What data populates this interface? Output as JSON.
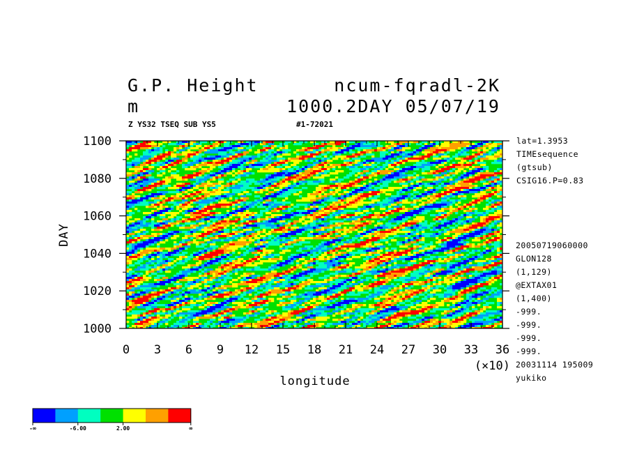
{
  "header": {
    "title_left": "G.P. Height",
    "title_right": "ncum-fqradl-2K",
    "unit": "m",
    "subtitle_right": "1000.2DAY 05/07/19",
    "small_left": "Z YS32 TSEQ SUB YS5",
    "small_right": "#1-72021"
  },
  "info_top": [
    "lat=1.3953",
    "TIMEsequence",
    "(gtsub)",
    "CSIG16.P=0.83"
  ],
  "info_bottom": [
    "20050719060000",
    "GLON128",
    "(1,129)",
    "@EXTAX01",
    "(1,400)",
    "-999.",
    "-999.",
    "-999.",
    "-999.",
    "20031114 195009",
    "yukiko"
  ],
  "chart_data": {
    "type": "heatmap",
    "xlabel": "longitude",
    "ylabel": "DAY",
    "x_multiplier": "(×10)",
    "x_ticks": [
      "0",
      "3",
      "6",
      "9",
      "12",
      "15",
      "18",
      "21",
      "24",
      "27",
      "30",
      "33",
      "36"
    ],
    "y_ticks": [
      "1000",
      "1020",
      "1040",
      "1060",
      "1080",
      "1100"
    ],
    "xlim": [
      0,
      36
    ],
    "ylim": [
      1000,
      1100
    ],
    "colorbar": {
      "colors": [
        "#0000ff",
        "#00a0ff",
        "#00ffc0",
        "#00e000",
        "#ffff00",
        "#ffa000",
        "#ff0000"
      ],
      "labels": [
        "-∞",
        "-6.00",
        "2.00",
        "∞"
      ]
    }
  }
}
